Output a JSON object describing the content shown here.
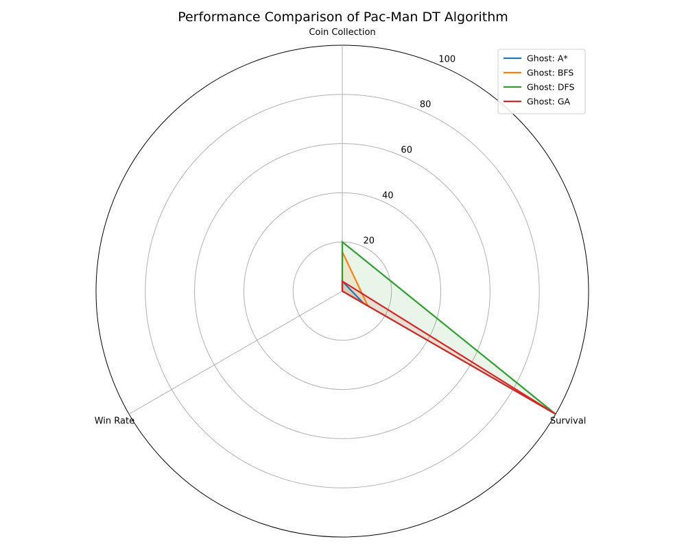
{
  "chart_data": {
    "type": "radar",
    "title": "Performance Comparison of Pac-Man DT Algorithm",
    "axes": [
      "Coin Collection",
      "Survival",
      "Win Rate"
    ],
    "rlim": [
      0,
      100
    ],
    "rticks": [
      20,
      40,
      60,
      80,
      100
    ],
    "grid": true,
    "legend_position": "top-right",
    "series": [
      {
        "name": "Ghost: A*",
        "values": [
          4,
          10,
          0
        ],
        "color": "#1f77b4"
      },
      {
        "name": "Ghost: BFS",
        "values": [
          16,
          12,
          0
        ],
        "color": "#ff7f0e"
      },
      {
        "name": "Ghost: DFS",
        "values": [
          20,
          100,
          0
        ],
        "color": "#2ca02c"
      },
      {
        "name": "Ghost: GA",
        "values": [
          4,
          100,
          0
        ],
        "color": "#d62728"
      }
    ]
  }
}
